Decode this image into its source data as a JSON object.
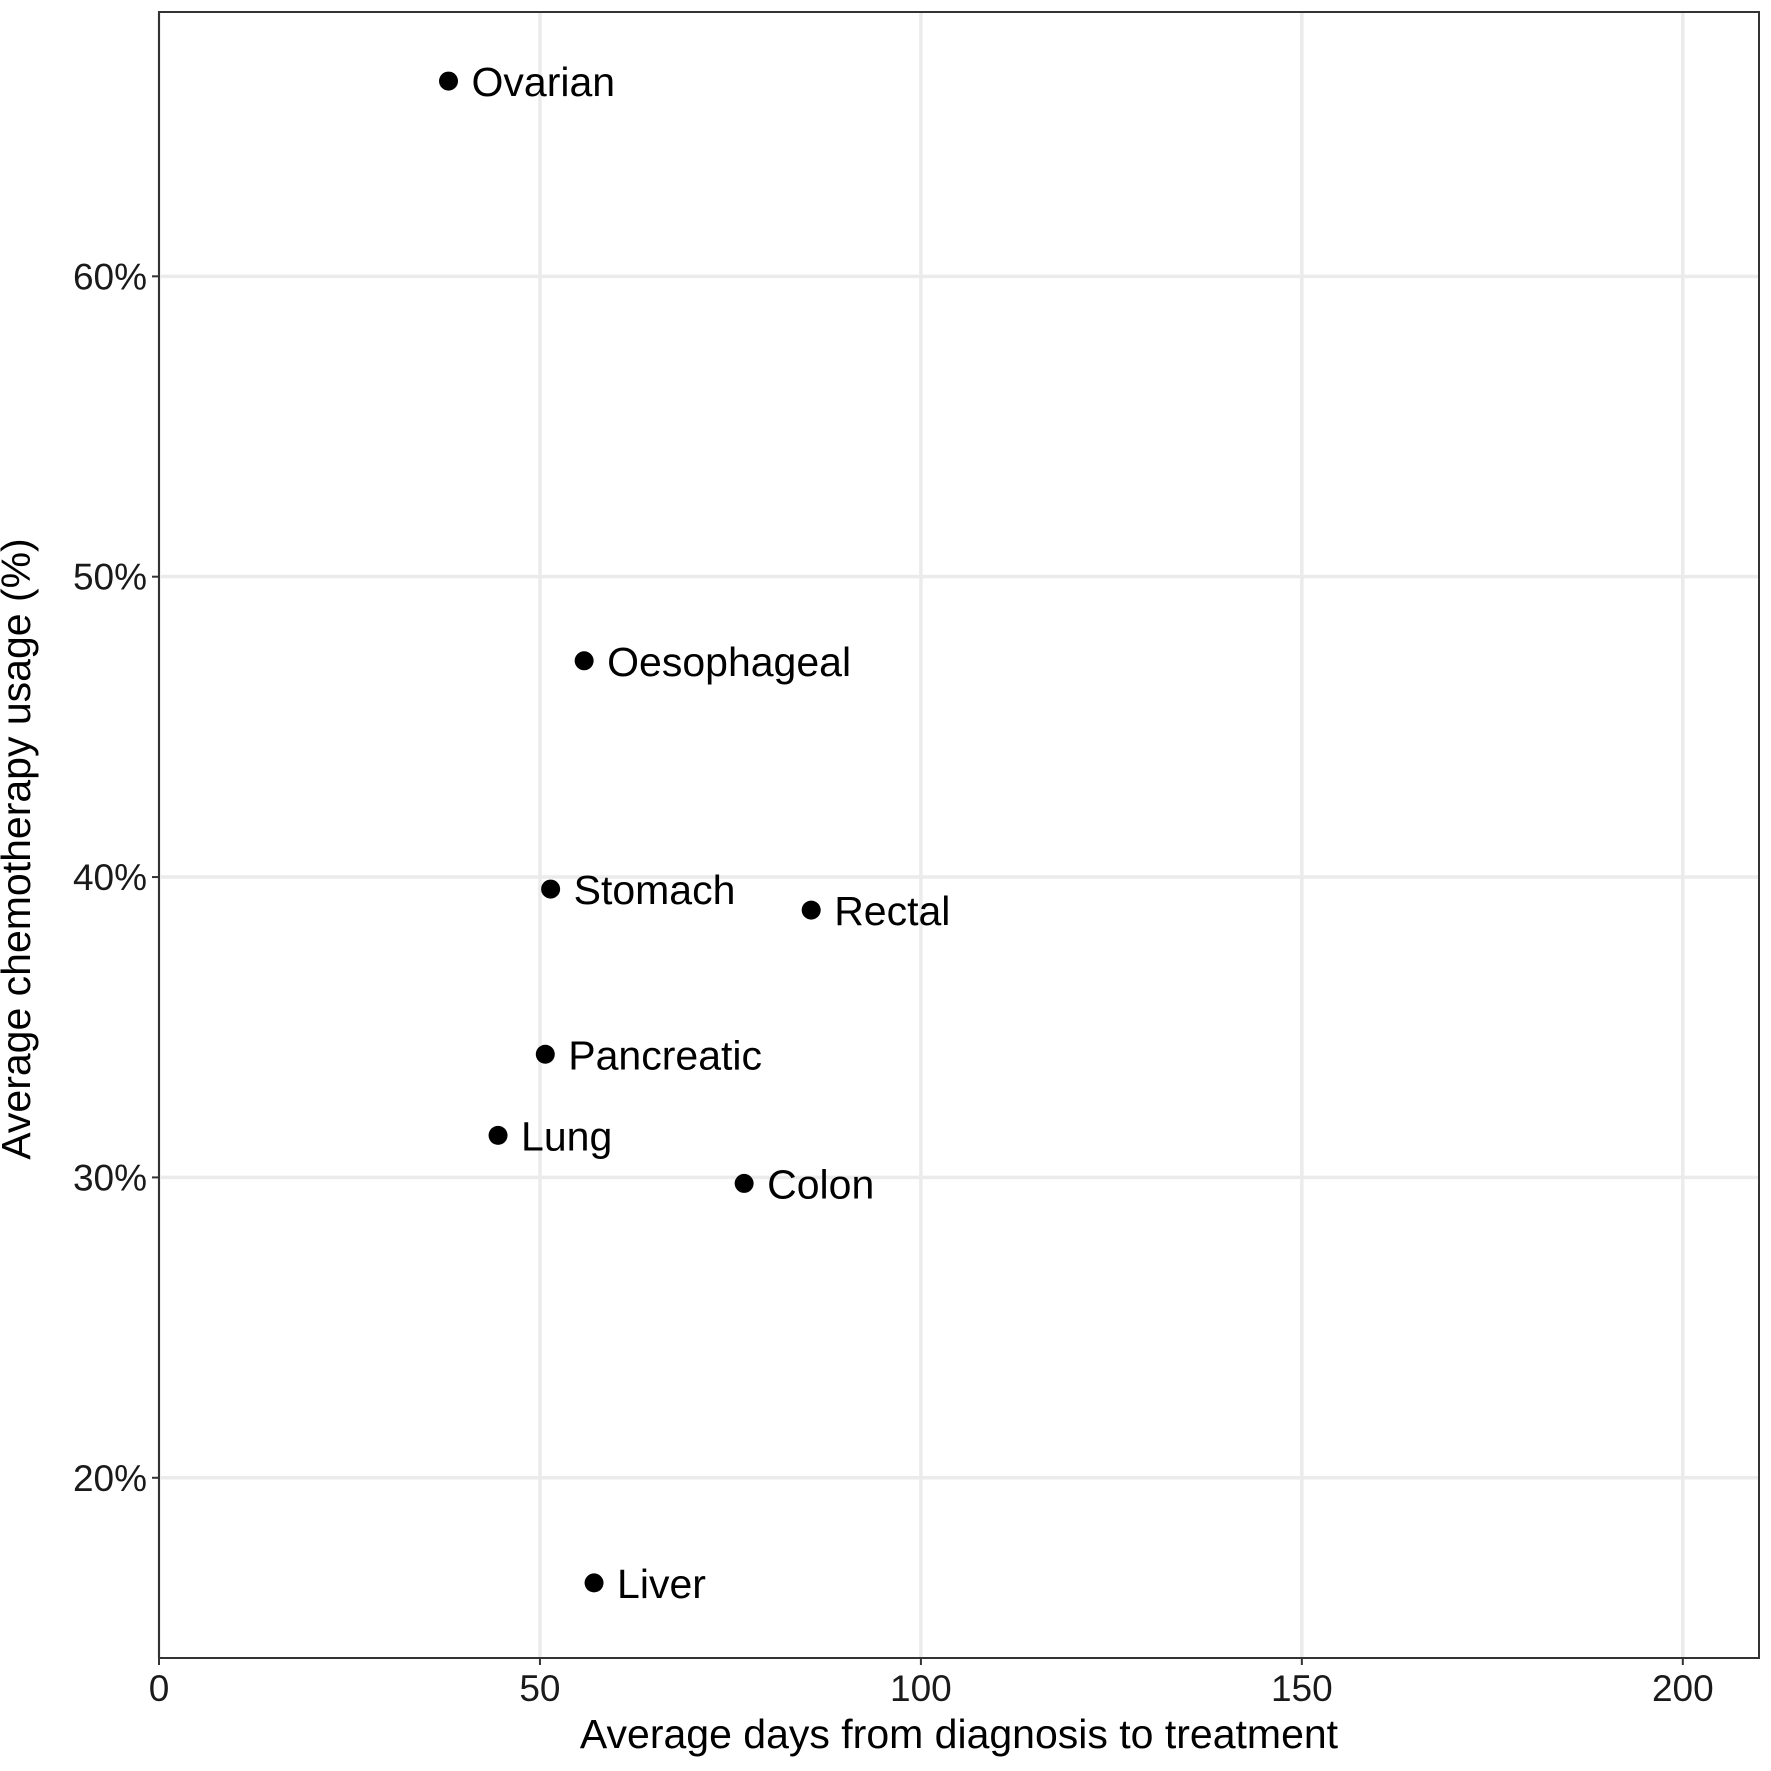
{
  "chart_data": {
    "type": "scatter",
    "title": "",
    "xlabel": "Average days from diagnosis to treatment",
    "ylabel": "Average chemotherapy usage (%)",
    "xlim": [
      0,
      210
    ],
    "ylim": [
      14,
      68.8
    ],
    "x_ticks": [
      0,
      50,
      100,
      150,
      200
    ],
    "x_tick_labels": [
      "0",
      "50",
      "100",
      "150",
      "200"
    ],
    "y_ticks": [
      20,
      30,
      40,
      50,
      60
    ],
    "y_tick_labels": [
      "20%",
      "30%",
      "40%",
      "50%",
      "60%"
    ],
    "grid": true,
    "legend": "none",
    "point_color": "#000000",
    "grid_color": "#ebebeb",
    "points": [
      {
        "label": "Ovarian",
        "x": 38,
        "y": 66.5
      },
      {
        "label": "Oesophageal",
        "x": 55.8,
        "y": 47.2
      },
      {
        "label": "Stomach",
        "x": 51.4,
        "y": 39.6
      },
      {
        "label": "Rectal",
        "x": 85.6,
        "y": 38.9
      },
      {
        "label": "Pancreatic",
        "x": 50.7,
        "y": 34.1
      },
      {
        "label": "Lung",
        "x": 44.5,
        "y": 31.4
      },
      {
        "label": "Colon",
        "x": 76.8,
        "y": 29.8
      },
      {
        "label": "Liver",
        "x": 57.1,
        "y": 16.5
      }
    ]
  }
}
